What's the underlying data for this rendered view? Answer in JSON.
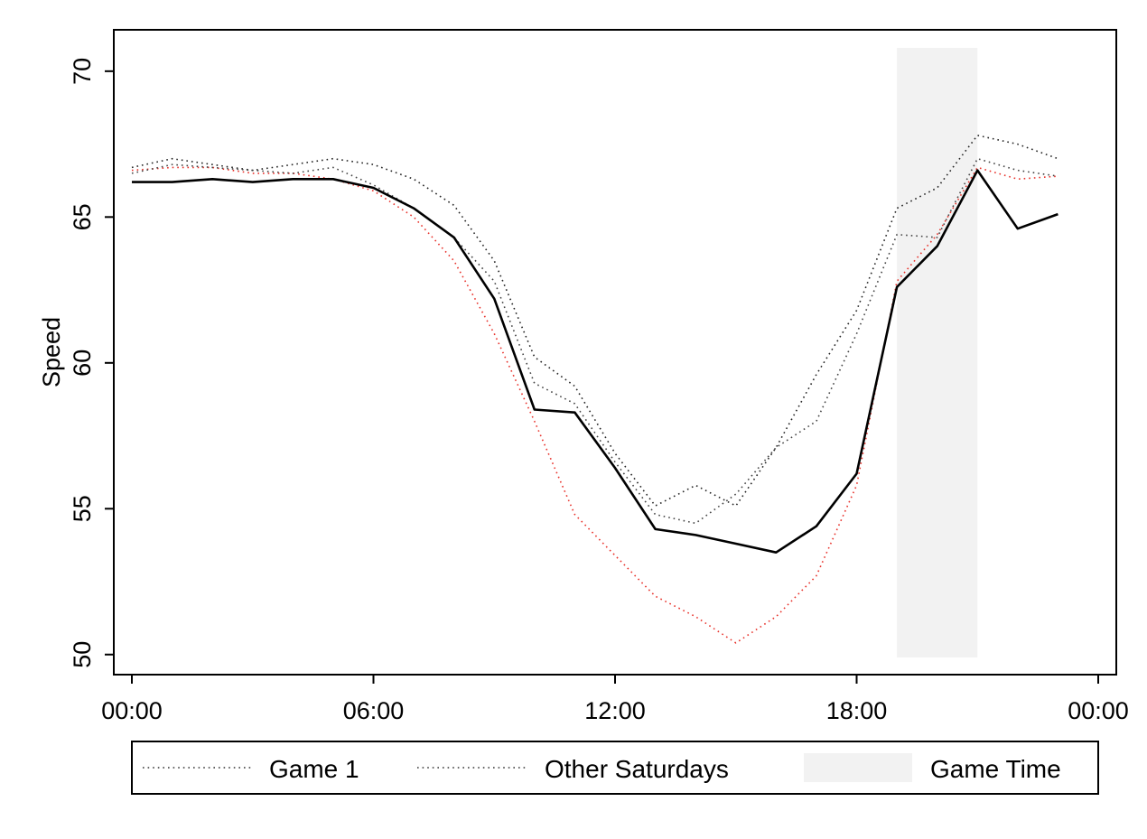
{
  "chart_data": {
    "type": "line",
    "title": "",
    "xlabel": "",
    "ylabel": "Speed",
    "xlim": [
      0,
      24
    ],
    "ylim": [
      49.9,
      70.8
    ],
    "x_ticks": [
      {
        "value": 0,
        "label": "00:00"
      },
      {
        "value": 6,
        "label": "06:00"
      },
      {
        "value": 12,
        "label": "12:00"
      },
      {
        "value": 18,
        "label": "18:00"
      },
      {
        "value": 24,
        "label": "00:00"
      }
    ],
    "y_ticks": [
      {
        "value": 50,
        "label": "50"
      },
      {
        "value": 55,
        "label": "55"
      },
      {
        "value": 60,
        "label": "60"
      },
      {
        "value": 65,
        "label": "65"
      },
      {
        "value": 70,
        "label": "70"
      }
    ],
    "grid": false,
    "legend_position": "bottom",
    "game_time": {
      "label": "Game Time",
      "start": 19,
      "end": 21,
      "color": "#f2f2f2"
    },
    "legend": [
      {
        "label": "Game 1",
        "style": "dotted",
        "color": "#333333",
        "kind": "line"
      },
      {
        "label": "Other Saturdays",
        "style": "dotted",
        "color": "#333333",
        "kind": "line"
      },
      {
        "label": "Game Time",
        "color": "#f2f2f2",
        "kind": "area"
      }
    ],
    "series": [
      {
        "style": "dotted",
        "color": "#e8312a",
        "x": [
          0,
          1,
          2,
          3,
          4,
          5,
          6,
          7,
          8,
          9,
          10,
          11,
          12,
          13,
          14,
          15,
          16,
          17,
          18,
          19,
          20,
          21,
          22,
          23
        ],
        "values": [
          66.6,
          66.7,
          66.7,
          66.5,
          66.5,
          66.3,
          65.9,
          65.0,
          63.5,
          61.0,
          58.0,
          54.8,
          53.4,
          52.0,
          51.3,
          50.4,
          51.3,
          52.7,
          55.8,
          62.8,
          64.4,
          66.7,
          66.3,
          66.4
        ]
      },
      {
        "style": "dotted",
        "color": "#222222",
        "x": [
          0,
          1,
          2,
          3,
          4,
          5,
          6,
          7,
          8,
          9,
          10,
          11,
          12,
          13,
          14,
          15,
          16,
          17,
          18,
          19,
          20,
          21,
          22,
          23
        ],
        "values": [
          66.7,
          67.0,
          66.8,
          66.6,
          66.8,
          67.0,
          66.8,
          66.3,
          65.4,
          63.5,
          60.2,
          59.2,
          56.9,
          55.1,
          55.8,
          55.1,
          57.1,
          59.6,
          61.8,
          65.3,
          66.0,
          67.8,
          67.5,
          67.0
        ]
      },
      {
        "style": "dotted",
        "color": "#444444",
        "x": [
          0,
          1,
          2,
          3,
          4,
          5,
          6,
          7,
          8,
          9,
          10,
          11,
          12,
          13,
          14,
          15,
          16,
          17,
          18,
          19,
          20,
          21,
          22,
          23
        ],
        "values": [
          66.5,
          66.8,
          66.7,
          66.6,
          66.5,
          66.7,
          66.1,
          65.3,
          64.3,
          62.8,
          59.3,
          58.6,
          56.6,
          54.8,
          54.5,
          55.5,
          57.1,
          58.0,
          61.0,
          64.4,
          64.3,
          67.0,
          66.6,
          66.4
        ]
      },
      {
        "style": "solid",
        "color": "#000000",
        "x": [
          0,
          1,
          2,
          3,
          4,
          5,
          6,
          7,
          8,
          9,
          10,
          11,
          12,
          13,
          14,
          15,
          16,
          17,
          18,
          19,
          20,
          21,
          22,
          23
        ],
        "values": [
          66.2,
          66.2,
          66.3,
          66.2,
          66.3,
          66.3,
          66.0,
          65.3,
          64.3,
          62.2,
          58.4,
          58.3,
          56.4,
          54.3,
          54.1,
          53.8,
          53.5,
          54.4,
          56.2,
          62.6,
          64.0,
          66.6,
          64.6,
          65.1
        ]
      }
    ]
  }
}
